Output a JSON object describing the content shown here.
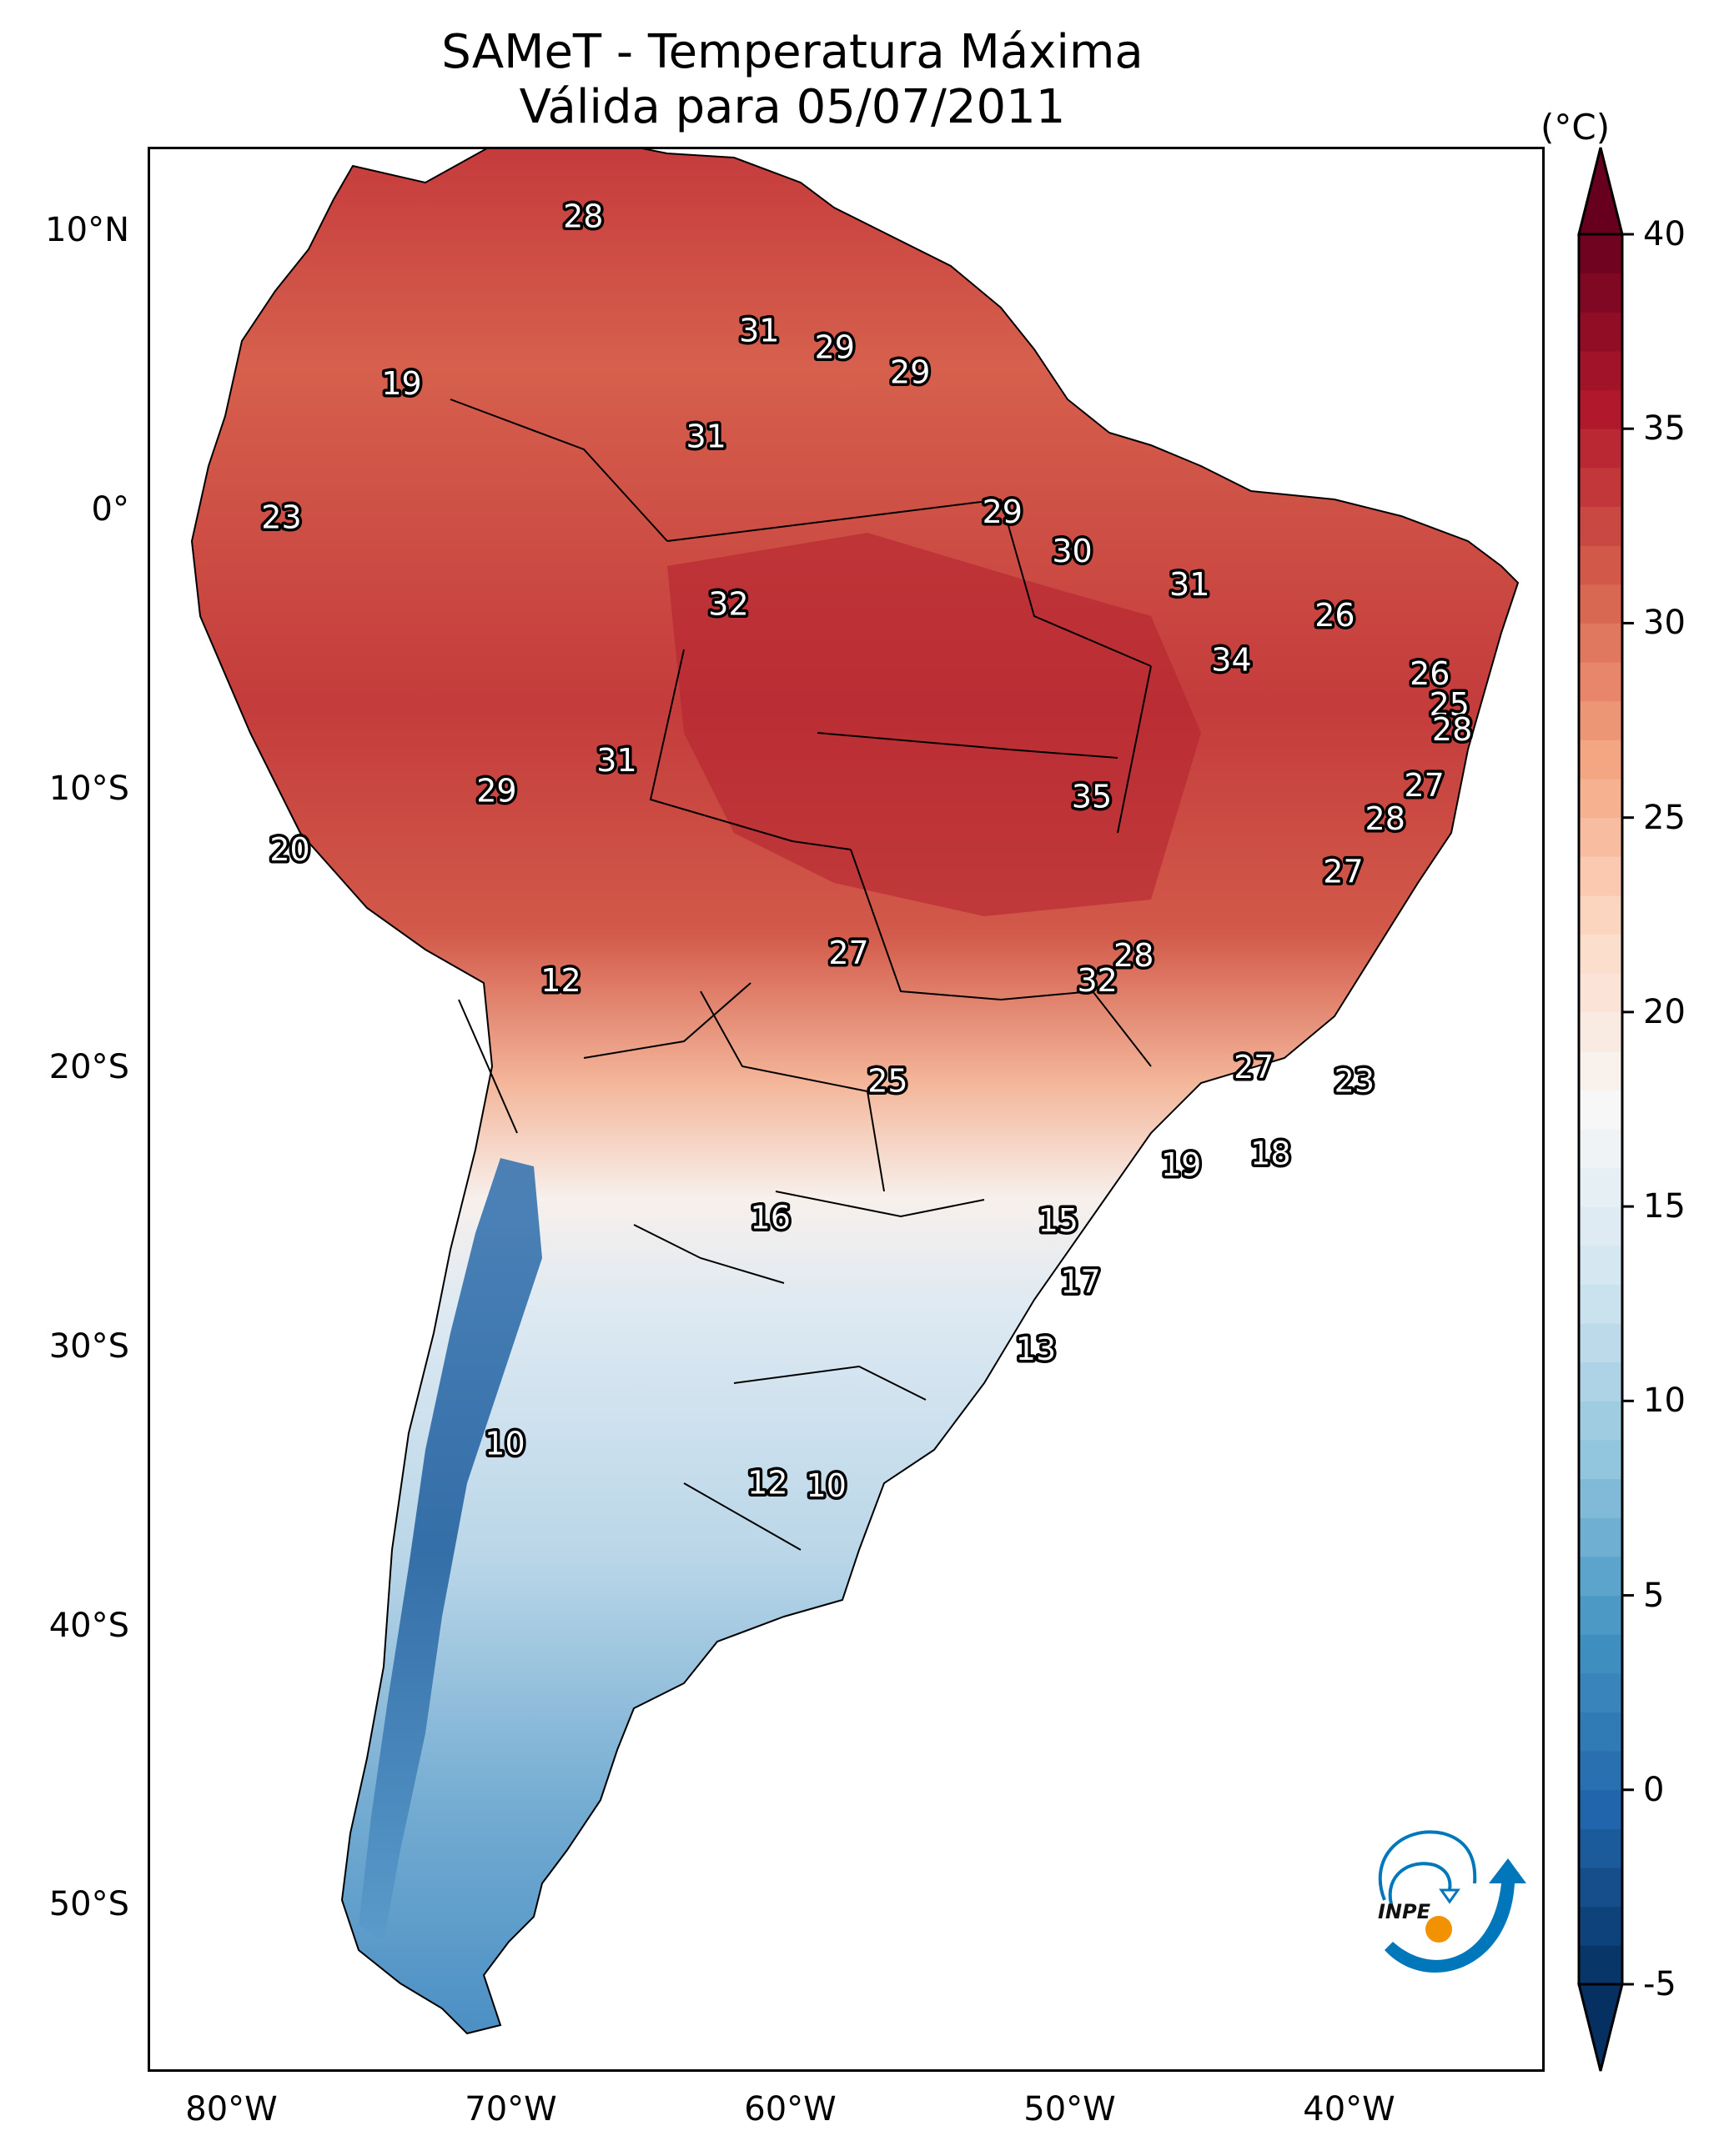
{
  "title": {
    "line1": "SAMeT - Temperatura Máxima",
    "line2": "Válida para 05/07/2011"
  },
  "chart_data": {
    "type": "heatmap",
    "title": "SAMeT - Temperatura Máxima — Válida para 05/07/2011",
    "xlabel": "",
    "ylabel": "",
    "x_ticks": [
      "80°W",
      "70°W",
      "60°W",
      "50°W",
      "40°W"
    ],
    "x_tick_values": [
      -80,
      -70,
      -60,
      -50,
      -40
    ],
    "y_ticks": [
      "10°N",
      "0°",
      "10°S",
      "20°S",
      "30°S",
      "40°S",
      "50°S"
    ],
    "y_tick_values": [
      10,
      0,
      -10,
      -20,
      -30,
      -40,
      -50
    ],
    "lon_range": [
      -83,
      -33
    ],
    "lat_range": [
      -56,
      13
    ],
    "colorbar": {
      "label": "(°C)",
      "ticks": [
        40,
        35,
        30,
        25,
        20,
        15,
        10,
        5,
        0,
        -5
      ],
      "range": [
        -5,
        40
      ],
      "extend": "both",
      "colormap": "RdBu_r"
    },
    "contour_labels": [
      {
        "value": 28,
        "lon": -67.5,
        "lat": 10.6
      },
      {
        "value": 31,
        "lon": -61.2,
        "lat": 6.5
      },
      {
        "value": 29,
        "lon": -58.5,
        "lat": 5.9
      },
      {
        "value": 29,
        "lon": -55.8,
        "lat": 5.0
      },
      {
        "value": 19,
        "lon": -74.0,
        "lat": 4.6
      },
      {
        "value": 31,
        "lon": -63.1,
        "lat": 2.7
      },
      {
        "value": 23,
        "lon": -78.3,
        "lat": -0.2
      },
      {
        "value": 29,
        "lon": -52.5,
        "lat": 0.0
      },
      {
        "value": 30,
        "lon": -50.0,
        "lat": -1.4
      },
      {
        "value": 31,
        "lon": -45.8,
        "lat": -2.6
      },
      {
        "value": 32,
        "lon": -62.3,
        "lat": -3.3
      },
      {
        "value": 26,
        "lon": -40.6,
        "lat": -3.7
      },
      {
        "value": 34,
        "lon": -44.3,
        "lat": -5.3
      },
      {
        "value": 26,
        "lon": -37.2,
        "lat": -5.8
      },
      {
        "value": 25,
        "lon": -36.5,
        "lat": -6.9
      },
      {
        "value": 28,
        "lon": -36.4,
        "lat": -7.8
      },
      {
        "value": 31,
        "lon": -66.3,
        "lat": -8.9
      },
      {
        "value": 27,
        "lon": -37.4,
        "lat": -9.8
      },
      {
        "value": 29,
        "lon": -70.6,
        "lat": -10.0
      },
      {
        "value": 35,
        "lon": -49.3,
        "lat": -10.2
      },
      {
        "value": 28,
        "lon": -38.8,
        "lat": -11.0
      },
      {
        "value": 20,
        "lon": -78.0,
        "lat": -12.1
      },
      {
        "value": 27,
        "lon": -40.3,
        "lat": -12.9
      },
      {
        "value": 27,
        "lon": -58.0,
        "lat": -15.8
      },
      {
        "value": 28,
        "lon": -47.8,
        "lat": -15.9
      },
      {
        "value": 32,
        "lon": -49.1,
        "lat": -16.8
      },
      {
        "value": 12,
        "lon": -68.3,
        "lat": -16.8
      },
      {
        "value": 27,
        "lon": -43.5,
        "lat": -19.9
      },
      {
        "value": 25,
        "lon": -56.6,
        "lat": -20.4
      },
      {
        "value": 23,
        "lon": -39.9,
        "lat": -20.4
      },
      {
        "value": 18,
        "lon": -42.9,
        "lat": -23.0
      },
      {
        "value": 19,
        "lon": -46.1,
        "lat": -23.4
      },
      {
        "value": 16,
        "lon": -60.8,
        "lat": -25.3
      },
      {
        "value": 15,
        "lon": -50.5,
        "lat": -25.4
      },
      {
        "value": 17,
        "lon": -49.7,
        "lat": -27.6
      },
      {
        "value": 13,
        "lon": -51.3,
        "lat": -30.0
      },
      {
        "value": 10,
        "lon": -70.3,
        "lat": -33.4
      },
      {
        "value": 12,
        "lon": -60.9,
        "lat": -34.8
      },
      {
        "value": 10,
        "lon": -58.8,
        "lat": -34.9
      }
    ]
  },
  "logo": {
    "text": "INPE",
    "colors": {
      "blue": "#0077bb",
      "orange": "#f39200"
    }
  }
}
